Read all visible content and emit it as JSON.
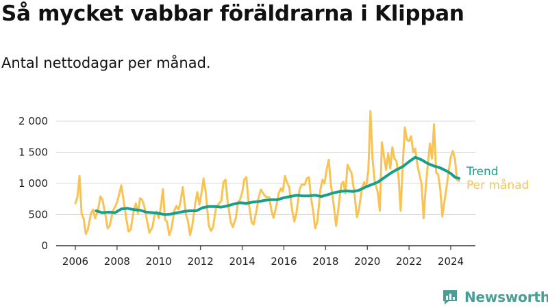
{
  "title": "Så mycket vabbar föräldrarna i Klippan",
  "subtitle": "Antal nettodagar per månad.",
  "brand": {
    "name": "Newsworthy",
    "icon": "newsworthy-logo-icon"
  },
  "colors": {
    "trend": "#1a9e8c",
    "monthly": "#f9c353",
    "grid": "#d9d9d9",
    "axis": "#333333"
  },
  "chart_data": {
    "type": "line",
    "grid": "horizontal",
    "legend": "labels at line ends",
    "xlim": [
      2005.5,
      2025.0
    ],
    "ylim": [
      0,
      2200
    ],
    "x_ticks": [
      {
        "value": 2006,
        "label": "2006"
      },
      {
        "value": 2008,
        "label": "2008"
      },
      {
        "value": 2010,
        "label": "2010"
      },
      {
        "value": 2012,
        "label": "2012"
      },
      {
        "value": 2014,
        "label": "2014"
      },
      {
        "value": 2016,
        "label": "2016"
      },
      {
        "value": 2018,
        "label": "2018"
      },
      {
        "value": 2020,
        "label": "2020"
      },
      {
        "value": 2022,
        "label": "2022"
      },
      {
        "value": 2024,
        "label": "2024"
      }
    ],
    "y_ticks": [
      {
        "value": 0,
        "label": "0"
      },
      {
        "value": 500,
        "label": "500"
      },
      {
        "value": 1000,
        "label": "1 000"
      },
      {
        "value": 1500,
        "label": "1 500"
      },
      {
        "value": 2000,
        "label": "2 000"
      }
    ],
    "series": [
      {
        "name": "Per månad",
        "color": "#f9c353",
        "points": [
          [
            2006.0,
            680
          ],
          [
            2006.1,
            780
          ],
          [
            2006.2,
            1120
          ],
          [
            2006.3,
            520
          ],
          [
            2006.4,
            430
          ],
          [
            2006.5,
            190
          ],
          [
            2006.6,
            260
          ],
          [
            2006.75,
            520
          ],
          [
            2006.85,
            580
          ],
          [
            2006.95,
            440
          ],
          [
            2007.1,
            600
          ],
          [
            2007.2,
            790
          ],
          [
            2007.3,
            740
          ],
          [
            2007.45,
            480
          ],
          [
            2007.55,
            280
          ],
          [
            2007.65,
            320
          ],
          [
            2007.8,
            560
          ],
          [
            2007.9,
            620
          ],
          [
            2008.0,
            700
          ],
          [
            2008.1,
            820
          ],
          [
            2008.2,
            970
          ],
          [
            2008.3,
            760
          ],
          [
            2008.45,
            420
          ],
          [
            2008.55,
            230
          ],
          [
            2008.65,
            260
          ],
          [
            2008.8,
            560
          ],
          [
            2008.9,
            680
          ],
          [
            2009.0,
            520
          ],
          [
            2009.1,
            760
          ],
          [
            2009.2,
            740
          ],
          [
            2009.3,
            640
          ],
          [
            2009.45,
            380
          ],
          [
            2009.55,
            210
          ],
          [
            2009.7,
            300
          ],
          [
            2009.8,
            500
          ],
          [
            2009.9,
            550
          ],
          [
            2010.0,
            440
          ],
          [
            2010.1,
            620
          ],
          [
            2010.2,
            910
          ],
          [
            2010.3,
            420
          ],
          [
            2010.4,
            380
          ],
          [
            2010.5,
            170
          ],
          [
            2010.6,
            260
          ],
          [
            2010.75,
            570
          ],
          [
            2010.85,
            640
          ],
          [
            2010.95,
            580
          ],
          [
            2011.05,
            720
          ],
          [
            2011.15,
            940
          ],
          [
            2011.3,
            500
          ],
          [
            2011.4,
            400
          ],
          [
            2011.5,
            170
          ],
          [
            2011.6,
            310
          ],
          [
            2011.75,
            680
          ],
          [
            2011.85,
            860
          ],
          [
            2011.95,
            660
          ],
          [
            2012.05,
            850
          ],
          [
            2012.15,
            1080
          ],
          [
            2012.25,
            860
          ],
          [
            2012.4,
            320
          ],
          [
            2012.5,
            240
          ],
          [
            2012.6,
            290
          ],
          [
            2012.75,
            620
          ],
          [
            2012.85,
            660
          ],
          [
            2013.0,
            720
          ],
          [
            2013.1,
            1020
          ],
          [
            2013.2,
            1060
          ],
          [
            2013.3,
            720
          ],
          [
            2013.45,
            380
          ],
          [
            2013.55,
            300
          ],
          [
            2013.7,
            450
          ],
          [
            2013.8,
            700
          ],
          [
            2013.9,
            740
          ],
          [
            2014.0,
            860
          ],
          [
            2014.1,
            1060
          ],
          [
            2014.2,
            1100
          ],
          [
            2014.3,
            720
          ],
          [
            2014.45,
            380
          ],
          [
            2014.55,
            340
          ],
          [
            2014.7,
            590
          ],
          [
            2014.8,
            790
          ],
          [
            2014.9,
            900
          ],
          [
            2015.05,
            820
          ],
          [
            2015.15,
            780
          ],
          [
            2015.3,
            780
          ],
          [
            2015.4,
            570
          ],
          [
            2015.5,
            450
          ],
          [
            2015.6,
            580
          ],
          [
            2015.75,
            840
          ],
          [
            2015.85,
            920
          ],
          [
            2015.95,
            870
          ],
          [
            2016.05,
            1120
          ],
          [
            2016.15,
            1020
          ],
          [
            2016.25,
            940
          ],
          [
            2016.4,
            560
          ],
          [
            2016.5,
            390
          ],
          [
            2016.6,
            520
          ],
          [
            2016.75,
            900
          ],
          [
            2016.85,
            980
          ],
          [
            2017.0,
            980
          ],
          [
            2017.1,
            1080
          ],
          [
            2017.2,
            1100
          ],
          [
            2017.3,
            770
          ],
          [
            2017.4,
            560
          ],
          [
            2017.5,
            280
          ],
          [
            2017.6,
            380
          ],
          [
            2017.75,
            900
          ],
          [
            2017.85,
            1060
          ],
          [
            2017.95,
            1000
          ],
          [
            2018.05,
            1220
          ],
          [
            2018.15,
            1380
          ],
          [
            2018.25,
            1000
          ],
          [
            2018.4,
            620
          ],
          [
            2018.5,
            320
          ],
          [
            2018.6,
            560
          ],
          [
            2018.75,
            980
          ],
          [
            2018.85,
            1030
          ],
          [
            2018.95,
            840
          ],
          [
            2019.05,
            1300
          ],
          [
            2019.15,
            1230
          ],
          [
            2019.25,
            1160
          ],
          [
            2019.4,
            780
          ],
          [
            2019.5,
            460
          ],
          [
            2019.6,
            580
          ],
          [
            2019.75,
            940
          ],
          [
            2019.85,
            1020
          ],
          [
            2019.95,
            960
          ],
          [
            2020.05,
            1200
          ],
          [
            2020.15,
            2160
          ],
          [
            2020.25,
            1400
          ],
          [
            2020.35,
            1040
          ],
          [
            2020.5,
            860
          ],
          [
            2020.6,
            560
          ],
          [
            2020.7,
            1660
          ],
          [
            2020.8,
            1430
          ],
          [
            2020.9,
            1220
          ],
          [
            2021.0,
            1480
          ],
          [
            2021.1,
            1240
          ],
          [
            2021.2,
            1580
          ],
          [
            2021.3,
            1400
          ],
          [
            2021.4,
            1360
          ],
          [
            2021.5,
            1100
          ],
          [
            2021.6,
            560
          ],
          [
            2021.7,
            1300
          ],
          [
            2021.8,
            1900
          ],
          [
            2021.9,
            1700
          ],
          [
            2022.0,
            1680
          ],
          [
            2022.1,
            1760
          ],
          [
            2022.2,
            1500
          ],
          [
            2022.3,
            1560
          ],
          [
            2022.4,
            1300
          ],
          [
            2022.5,
            1140
          ],
          [
            2022.6,
            1000
          ],
          [
            2022.7,
            440
          ],
          [
            2022.8,
            940
          ],
          [
            2022.9,
            1300
          ],
          [
            2023.0,
            1640
          ],
          [
            2023.1,
            1400
          ],
          [
            2023.2,
            1950
          ],
          [
            2023.3,
            1180
          ],
          [
            2023.4,
            1140
          ],
          [
            2023.5,
            900
          ],
          [
            2023.6,
            470
          ],
          [
            2023.7,
            720
          ],
          [
            2023.8,
            940
          ],
          [
            2023.9,
            1200
          ],
          [
            2024.0,
            1420
          ],
          [
            2024.1,
            1520
          ],
          [
            2024.2,
            1400
          ],
          [
            2024.3,
            1060
          ],
          [
            2024.4,
            1040
          ]
        ]
      },
      {
        "name": "Trend",
        "color": "#1a9e8c",
        "points": [
          [
            2007.0,
            560
          ],
          [
            2007.3,
            530
          ],
          [
            2007.6,
            540
          ],
          [
            2007.9,
            530
          ],
          [
            2008.2,
            590
          ],
          [
            2008.5,
            600
          ],
          [
            2008.8,
            580
          ],
          [
            2009.1,
            570
          ],
          [
            2009.4,
            540
          ],
          [
            2009.7,
            530
          ],
          [
            2010.0,
            520
          ],
          [
            2010.3,
            500
          ],
          [
            2010.6,
            510
          ],
          [
            2010.9,
            530
          ],
          [
            2011.2,
            550
          ],
          [
            2011.5,
            560
          ],
          [
            2011.8,
            560
          ],
          [
            2012.1,
            610
          ],
          [
            2012.4,
            630
          ],
          [
            2012.7,
            630
          ],
          [
            2013.0,
            620
          ],
          [
            2013.3,
            640
          ],
          [
            2013.6,
            670
          ],
          [
            2013.9,
            690
          ],
          [
            2014.2,
            680
          ],
          [
            2014.5,
            700
          ],
          [
            2014.8,
            710
          ],
          [
            2015.1,
            730
          ],
          [
            2015.4,
            740
          ],
          [
            2015.7,
            740
          ],
          [
            2016.0,
            770
          ],
          [
            2016.3,
            790
          ],
          [
            2016.6,
            810
          ],
          [
            2016.9,
            800
          ],
          [
            2017.2,
            800
          ],
          [
            2017.5,
            810
          ],
          [
            2017.8,
            790
          ],
          [
            2018.1,
            820
          ],
          [
            2018.4,
            850
          ],
          [
            2018.7,
            870
          ],
          [
            2019.0,
            880
          ],
          [
            2019.3,
            870
          ],
          [
            2019.6,
            890
          ],
          [
            2019.9,
            940
          ],
          [
            2020.2,
            980
          ],
          [
            2020.5,
            1020
          ],
          [
            2020.8,
            1090
          ],
          [
            2021.1,
            1160
          ],
          [
            2021.4,
            1220
          ],
          [
            2021.7,
            1270
          ],
          [
            2022.0,
            1350
          ],
          [
            2022.3,
            1420
          ],
          [
            2022.6,
            1380
          ],
          [
            2022.9,
            1320
          ],
          [
            2023.2,
            1280
          ],
          [
            2023.5,
            1250
          ],
          [
            2023.8,
            1200
          ],
          [
            2024.0,
            1160
          ],
          [
            2024.2,
            1100
          ],
          [
            2024.4,
            1080
          ]
        ]
      }
    ],
    "labels": {
      "trend": "Trend",
      "monthly": "Per månad"
    }
  }
}
